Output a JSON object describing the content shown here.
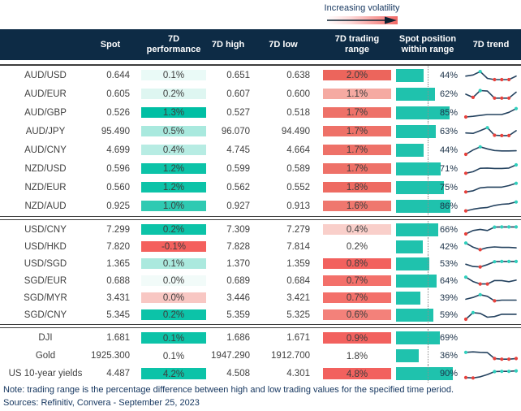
{
  "legend": {
    "label": "Increasing volatility"
  },
  "header": {
    "columns": [
      {
        "label": ""
      },
      {
        "label": "Spot"
      },
      {
        "label": "7D performance"
      },
      {
        "label": "7D high"
      },
      {
        "label": "7D low"
      },
      {
        "label": "7D trading range"
      },
      {
        "label": "Spot position within range"
      },
      {
        "label": "7D trend"
      }
    ]
  },
  "colors": {
    "header_bg": "#0d2b45",
    "position_bar": "#1fc2ad",
    "trend_line": "#24425f",
    "trend_high_dot": "#2fd0bd",
    "trend_low_dot": "#e8413c",
    "perf_strong_teal": "#0cc3a8",
    "range_strong_red": "#f2615e",
    "body_text": "#404040",
    "footer_text": "#15365f"
  },
  "chart_data": {
    "type": "table",
    "columns": [
      "",
      "Spot",
      "7D performance",
      "7D high",
      "7D low",
      "7D trading range",
      "Spot position within range",
      "7D trend"
    ],
    "sections": [
      {
        "rows": [
          {
            "label": "AUD/USD",
            "spot": "0.644",
            "perf": "0.1%",
            "perf_bg": "#eafaf7",
            "high": "0.651",
            "low": "0.638",
            "range": "2.0%",
            "range_bg": "#ec655c",
            "position_pct": 44,
            "trend": {
              "values": [
                45,
                55,
                85,
                25,
                14,
                14,
                14,
                45
              ],
              "markers": [
                "",
                "",
                "high",
                "",
                "low",
                "low",
                "low",
                ""
              ]
            }
          },
          {
            "label": "AUD/EUR",
            "spot": "0.605",
            "perf": "0.2%",
            "perf_bg": "#def6f1",
            "high": "0.607",
            "low": "0.600",
            "range": "1.1%",
            "range_bg": "#f5aaa2",
            "position_pct": 62,
            "trend": {
              "values": [
                50,
                22,
                82,
                78,
                16,
                16,
                16,
                68
              ],
              "markers": [
                "",
                "low",
                "high",
                "",
                "low",
                "low",
                "low",
                ""
              ]
            }
          },
          {
            "label": "AUD/GBP",
            "spot": "0.526",
            "perf": "1.3%",
            "perf_bg": "#00bfa4",
            "high": "0.527",
            "low": "0.518",
            "range": "1.7%",
            "range_bg": "#ee7168",
            "position_pct": 85,
            "trend": {
              "values": [
                14,
                20,
                28,
                36,
                36,
                36,
                55,
                88
              ],
              "markers": [
                "low",
                "",
                "",
                "",
                "",
                "",
                "",
                "high"
              ]
            }
          },
          {
            "label": "AUD/JPY",
            "spot": "95.490",
            "perf": "0.5%",
            "perf_bg": "#a9e9de",
            "high": "96.070",
            "low": "94.490",
            "range": "1.7%",
            "range_bg": "#ee7168",
            "position_pct": 63,
            "trend": {
              "values": [
                38,
                34,
                58,
                84,
                18,
                15,
                15,
                58
              ],
              "markers": [
                "",
                "",
                "",
                "high",
                "low",
                "low",
                "low",
                ""
              ]
            }
          },
          {
            "label": "AUD/CNY",
            "spot": "4.699",
            "perf": "0.4%",
            "perf_bg": "#b7ece3",
            "high": "4.745",
            "low": "4.664",
            "range": "1.7%",
            "range_bg": "#ee7168",
            "position_pct": 44,
            "trend": {
              "values": [
                14,
                52,
                80,
                62,
                48,
                44,
                44,
                46
              ],
              "markers": [
                "low",
                "",
                "high",
                "",
                "",
                "",
                "",
                ""
              ]
            }
          },
          {
            "label": "NZD/USD",
            "spot": "0.596",
            "perf": "1.2%",
            "perf_bg": "#0cc3a8",
            "high": "0.599",
            "low": "0.589",
            "range": "1.7%",
            "range_bg": "#ee7168",
            "position_pct": 71,
            "trend": {
              "values": [
                12,
                26,
                56,
                58,
                54,
                54,
                58,
                86
              ],
              "markers": [
                "low",
                "",
                "",
                "",
                "",
                "",
                "",
                "high"
              ]
            }
          },
          {
            "label": "NZD/EUR",
            "spot": "0.560",
            "perf": "1.2%",
            "perf_bg": "#0cc3a8",
            "high": "0.562",
            "low": "0.552",
            "range": "1.8%",
            "range_bg": "#ee6b62",
            "position_pct": 75,
            "trend": {
              "values": [
                12,
                22,
                48,
                54,
                54,
                54,
                68,
                88
              ],
              "markers": [
                "low",
                "",
                "",
                "",
                "",
                "",
                "",
                "high"
              ]
            }
          },
          {
            "label": "NZD/AUD",
            "spot": "0.925",
            "perf": "1.0%",
            "perf_bg": "#2fcab2",
            "high": "0.927",
            "low": "0.913",
            "range": "1.6%",
            "range_bg": "#ef776e",
            "position_pct": 86,
            "trend": {
              "values": [
                10,
                24,
                34,
                40,
                58,
                68,
                72,
                88
              ],
              "markers": [
                "low",
                "",
                "",
                "",
                "",
                "",
                "",
                "high"
              ]
            }
          }
        ]
      },
      {
        "rows": [
          {
            "label": "USD/CNY",
            "spot": "7.299",
            "perf": "0.2%",
            "perf_bg": "#0cc3a8",
            "high": "7.309",
            "low": "7.279",
            "range": "0.4%",
            "range_bg": "#f9cfca",
            "position_pct": 66,
            "trend": {
              "values": [
                14,
                44,
                54,
                44,
                74,
                76,
                76,
                76
              ],
              "markers": [
                "low",
                "",
                "",
                "",
                "high",
                "high",
                "high",
                "high"
              ]
            }
          },
          {
            "label": "USD/HKD",
            "spot": "7.820",
            "perf": "-0.1%",
            "perf_bg": "#f4605d",
            "high": "7.828",
            "low": "7.814",
            "range": "0.2%",
            "range_bg": "",
            "position_pct": 42,
            "trend": {
              "values": [
                84,
                48,
                26,
                44,
                50,
                46,
                46,
                42
              ],
              "markers": [
                "high",
                "",
                "low",
                "",
                "",
                "",
                "",
                ""
              ]
            }
          },
          {
            "label": "USD/SGD",
            "spot": "1.365",
            "perf": "0.1%",
            "perf_bg": "#abe9de",
            "high": "1.370",
            "low": "1.359",
            "range": "0.8%",
            "range_bg": "#f2615e",
            "position_pct": 53,
            "trend": {
              "values": [
                48,
                28,
                24,
                44,
                70,
                72,
                72,
                72
              ],
              "markers": [
                "",
                "",
                "low",
                "",
                "high",
                "high",
                "high",
                "high"
              ]
            }
          },
          {
            "label": "SGD/EUR",
            "spot": "0.688",
            "perf": "0.0%",
            "perf_bg": "#f2fbf9",
            "high": "0.689",
            "low": "0.684",
            "range": "0.7%",
            "range_bg": "#f3706a",
            "position_pct": 64,
            "trend": {
              "values": [
                84,
                46,
                24,
                24,
                54,
                54,
                44,
                58
              ],
              "markers": [
                "high",
                "",
                "low",
                "low",
                "",
                "",
                "",
                ""
              ]
            }
          },
          {
            "label": "SGD/MYR",
            "spot": "3.431",
            "perf": "0.0%",
            "perf_bg": "#f8c7c3",
            "high": "3.446",
            "low": "3.421",
            "range": "0.7%",
            "range_bg": "#f3706a",
            "position_pct": 39,
            "trend": {
              "values": [
                40,
                56,
                80,
                66,
                26,
                32,
                32,
                32
              ],
              "markers": [
                "",
                "",
                "high",
                "",
                "low",
                "",
                "",
                ""
              ]
            }
          },
          {
            "label": "SGD/CNY",
            "spot": "5.345",
            "perf": "0.2%",
            "perf_bg": "#0cc3a8",
            "high": "5.359",
            "low": "5.325",
            "range": "0.6%",
            "range_bg": "#f3817a",
            "position_pct": 59,
            "trend": {
              "values": [
                14,
                72,
                66,
                32,
                38,
                58,
                58,
                58
              ],
              "markers": [
                "low",
                "high",
                "",
                "",
                "",
                "",
                "",
                ""
              ]
            }
          }
        ]
      },
      {
        "rows": [
          {
            "label": "DJI",
            "spot": "1.681",
            "perf": "0.1%",
            "perf_bg": "#0cc3a8",
            "high": "1.686",
            "low": "1.671",
            "range": "0.9%",
            "range_bg": "#f2615e",
            "position_pct": 69,
            "trend": null
          },
          {
            "label": "Gold",
            "spot": "1925.300",
            "perf": "0.1%",
            "perf_bg": "",
            "high": "1947.290",
            "low": "1912.700",
            "range": "1.8%",
            "range_bg": "",
            "position_pct": 36,
            "trend": {
              "values": [
                80,
                84,
                80,
                78,
                26,
                20,
                20,
                26
              ],
              "markers": [
                "high",
                "",
                "",
                "",
                "low",
                "low",
                "low",
                "low"
              ]
            }
          },
          {
            "label": "US 10-year yields",
            "spot": "4.487",
            "perf": "4.2%",
            "perf_bg": "#0cc3a8",
            "high": "4.508",
            "low": "4.301",
            "range": "4.8%",
            "range_bg": "#f2615e",
            "position_pct": 90,
            "trend": {
              "values": [
                16,
                12,
                22,
                42,
                68,
                70,
                70,
                74
              ],
              "markers": [
                "low",
                "low",
                "",
                "",
                "high",
                "high",
                "high",
                "high"
              ]
            }
          }
        ]
      }
    ]
  },
  "footer": {
    "note": "Note: trading range is the percentage difference between high and low trading values for the specified time period.",
    "sources": "Sources: Refinitiv, Convera - September 25, 2023"
  }
}
